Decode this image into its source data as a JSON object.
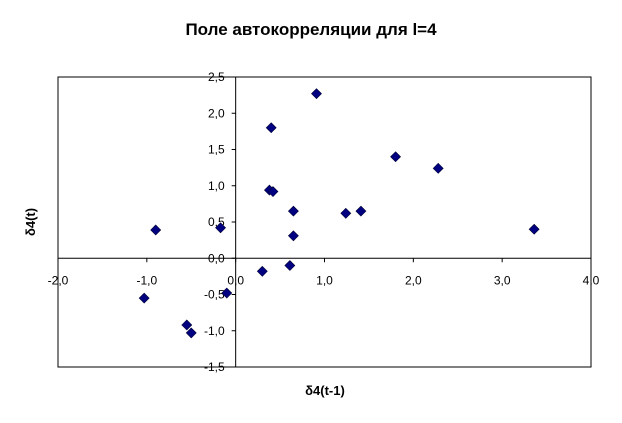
{
  "chart_data": {
    "type": "scatter",
    "title": "Поле автокорреляции для l=4",
    "xlabel": "δ4(t-1)",
    "ylabel": "δ4(t)",
    "xlim": [
      -2.0,
      4.0
    ],
    "ylim": [
      -1.5,
      2.5
    ],
    "x_ticks": [
      -2.0,
      -1.0,
      0.0,
      1.0,
      2.0,
      3.0,
      4.0
    ],
    "y_ticks": [
      -1.5,
      -1.0,
      -0.5,
      0.0,
      0.5,
      1.0,
      1.5,
      2.0,
      2.5
    ],
    "x_tick_labels": [
      "-2,0",
      "-1,0",
      "0,0",
      "1,0",
      "2,0",
      "3,0",
      "4,0"
    ],
    "y_tick_labels": [
      "-1,5",
      "-1,0",
      "-0,5",
      "0,0",
      "0,5",
      "1,0",
      "1,5",
      "2,0",
      "2,5"
    ],
    "grid": false,
    "legend": "none",
    "marker": "diamond",
    "marker_color": "#000080",
    "points": [
      {
        "x": 0.91,
        "y": 2.27
      },
      {
        "x": 0.4,
        "y": 1.8
      },
      {
        "x": 1.8,
        "y": 1.4
      },
      {
        "x": 2.28,
        "y": 1.24
      },
      {
        "x": 0.38,
        "y": 0.94
      },
      {
        "x": 0.42,
        "y": 0.92
      },
      {
        "x": 0.65,
        "y": 0.65
      },
      {
        "x": 1.24,
        "y": 0.62
      },
      {
        "x": 1.41,
        "y": 0.65
      },
      {
        "x": 3.36,
        "y": 0.4
      },
      {
        "x": -0.9,
        "y": 0.39
      },
      {
        "x": -0.17,
        "y": 0.42
      },
      {
        "x": 0.65,
        "y": 0.31
      },
      {
        "x": 0.61,
        "y": -0.1
      },
      {
        "x": 0.3,
        "y": -0.18
      },
      {
        "x": -0.1,
        "y": -0.48
      },
      {
        "x": -1.03,
        "y": -0.55
      },
      {
        "x": -0.55,
        "y": -0.92
      },
      {
        "x": -0.5,
        "y": -1.03
      }
    ]
  }
}
